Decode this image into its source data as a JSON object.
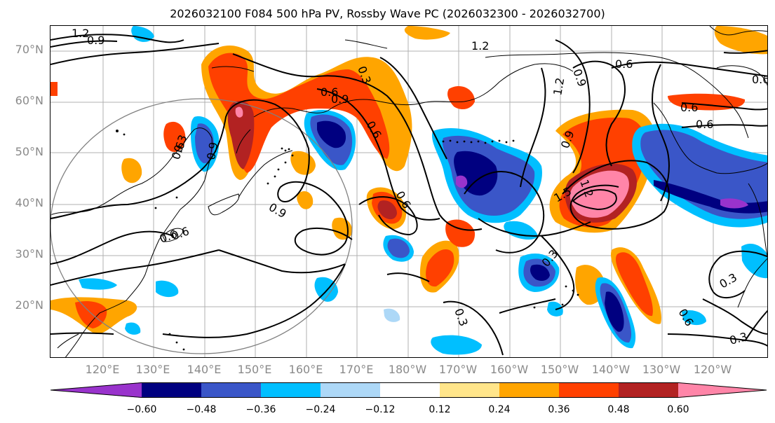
{
  "title": "2026032100 F084 500 hPa PV, Rossby Wave PC (2026032300 - 2026032700)",
  "map": {
    "lat_labels": [
      "70°N",
      "60°N",
      "50°N",
      "40°N",
      "30°N",
      "20°N"
    ],
    "lon_labels": [
      "120°E",
      "130°E",
      "140°E",
      "150°E",
      "160°E",
      "170°E",
      "180°W",
      "170°W",
      "160°W",
      "150°W",
      "140°W",
      "130°W",
      "120°W"
    ]
  },
  "contour_labels": [
    "1.2",
    "0.9",
    "0.3",
    "0.6",
    "0.9",
    "0.6",
    "0.6",
    "0.9",
    "0.6",
    "0.9",
    "0.6",
    "1.2",
    "0.9",
    "1.2",
    "1.5",
    "0.6",
    "0.3",
    "0.3",
    "0.3",
    "0.6",
    "0.3",
    "0.3",
    "0.6",
    "0.9",
    "0.6",
    "0.6",
    "1.2",
    "0.6"
  ],
  "colorbar": {
    "ticks": [
      "−0.60",
      "−0.48",
      "−0.36",
      "−0.24",
      "−0.12",
      "0.12",
      "0.24",
      "0.36",
      "0.48",
      "0.60"
    ],
    "colors": [
      "#9933cc",
      "#000080",
      "#3a56c8",
      "#00bfff",
      "#add8f7",
      "#ffffff",
      "#ffe58a",
      "#ffa500",
      "#ff4000",
      "#b22222",
      "#ff85a8"
    ]
  }
}
